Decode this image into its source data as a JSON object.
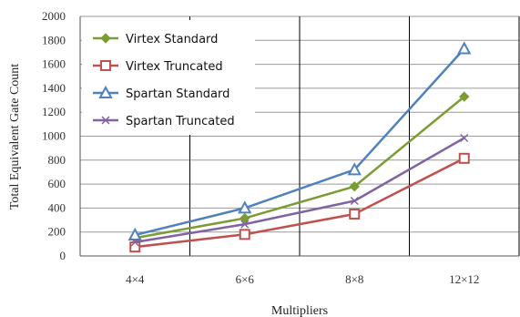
{
  "chart_data": {
    "type": "line",
    "categories": [
      "4×4",
      "6×6",
      "8×8",
      "12×12"
    ],
    "series": [
      {
        "name": "Virtex Standard",
        "values": [
          150,
          315,
          580,
          1330
        ],
        "color": "#7b9c33",
        "marker": "diamond"
      },
      {
        "name": "Virtex Truncated",
        "values": [
          75,
          180,
          350,
          815
        ],
        "color": "#c0504d",
        "marker": "square"
      },
      {
        "name": "Spartan Standard",
        "values": [
          175,
          400,
          720,
          1730
        ],
        "color": "#4f81bd",
        "marker": "triangle"
      },
      {
        "name": "Spartan Truncated",
        "values": [
          115,
          265,
          460,
          985
        ],
        "color": "#8064a2",
        "marker": "x"
      }
    ],
    "xlabel": "Multipliers",
    "ylabel": "Total Equivalent Gate Count",
    "ylim": [
      0,
      2000
    ],
    "yticks": [
      "0",
      "200",
      "400",
      "600",
      "800",
      "1000",
      "1200",
      "1400",
      "1600",
      "1800",
      "2000"
    ],
    "grid": true,
    "legend_position": "top-left"
  }
}
